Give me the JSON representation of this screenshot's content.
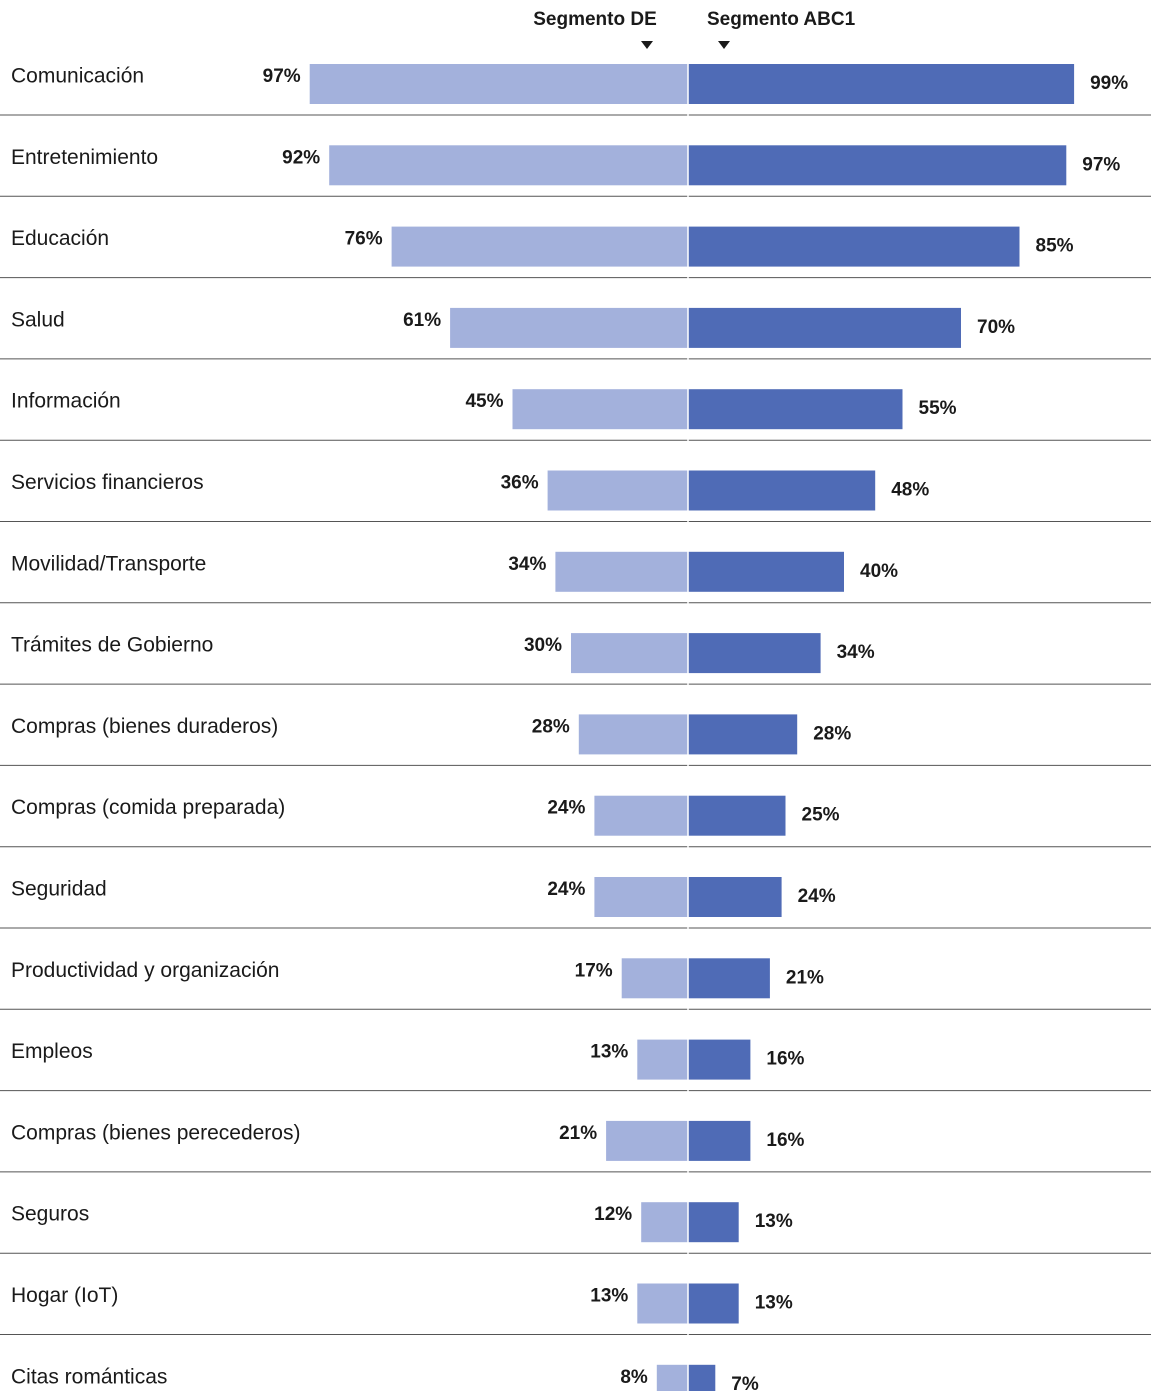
{
  "chart_data": {
    "type": "diverging_bar",
    "categories": [
      "Comunicación",
      "Entretenimiento",
      "Educación",
      "Salud",
      "Información",
      "Servicios financieros",
      "Movilidad/Transporte",
      "Trámites de Gobierno",
      "Compras (bienes duraderos)",
      "Compras (comida preparada)",
      "Seguridad",
      "Productividad y organización",
      "Empleos",
      "Compras (bienes perecederos)",
      "Seguros",
      "Hogar (IoT)",
      "Citas románticas"
    ],
    "series": [
      {
        "name": "Segmento DE",
        "color": "#a3b1dc",
        "side": "left",
        "values": [
          97,
          92,
          76,
          61,
          45,
          36,
          34,
          30,
          28,
          24,
          24,
          17,
          13,
          21,
          12,
          13,
          8
        ],
        "value_labels": [
          "97%",
          "92%",
          "76%",
          "61%",
          "45%",
          "36%",
          "34%",
          "30%",
          "28%",
          "24%",
          "24%",
          "17%",
          "13%",
          "21%",
          "12%",
          "13%",
          "8%"
        ]
      },
      {
        "name": "Segmento ABC1",
        "color": "#4f6bb6",
        "side": "right",
        "values": [
          99,
          97,
          85,
          70,
          55,
          48,
          40,
          34,
          28,
          25,
          24,
          21,
          16,
          16,
          13,
          13,
          7
        ],
        "value_labels": [
          "99%",
          "97%",
          "85%",
          "70%",
          "55%",
          "48%",
          "40%",
          "34%",
          "28%",
          "25%",
          "24%",
          "21%",
          "16%",
          "16%",
          "13%",
          "13%",
          "7%"
        ]
      }
    ]
  }
}
